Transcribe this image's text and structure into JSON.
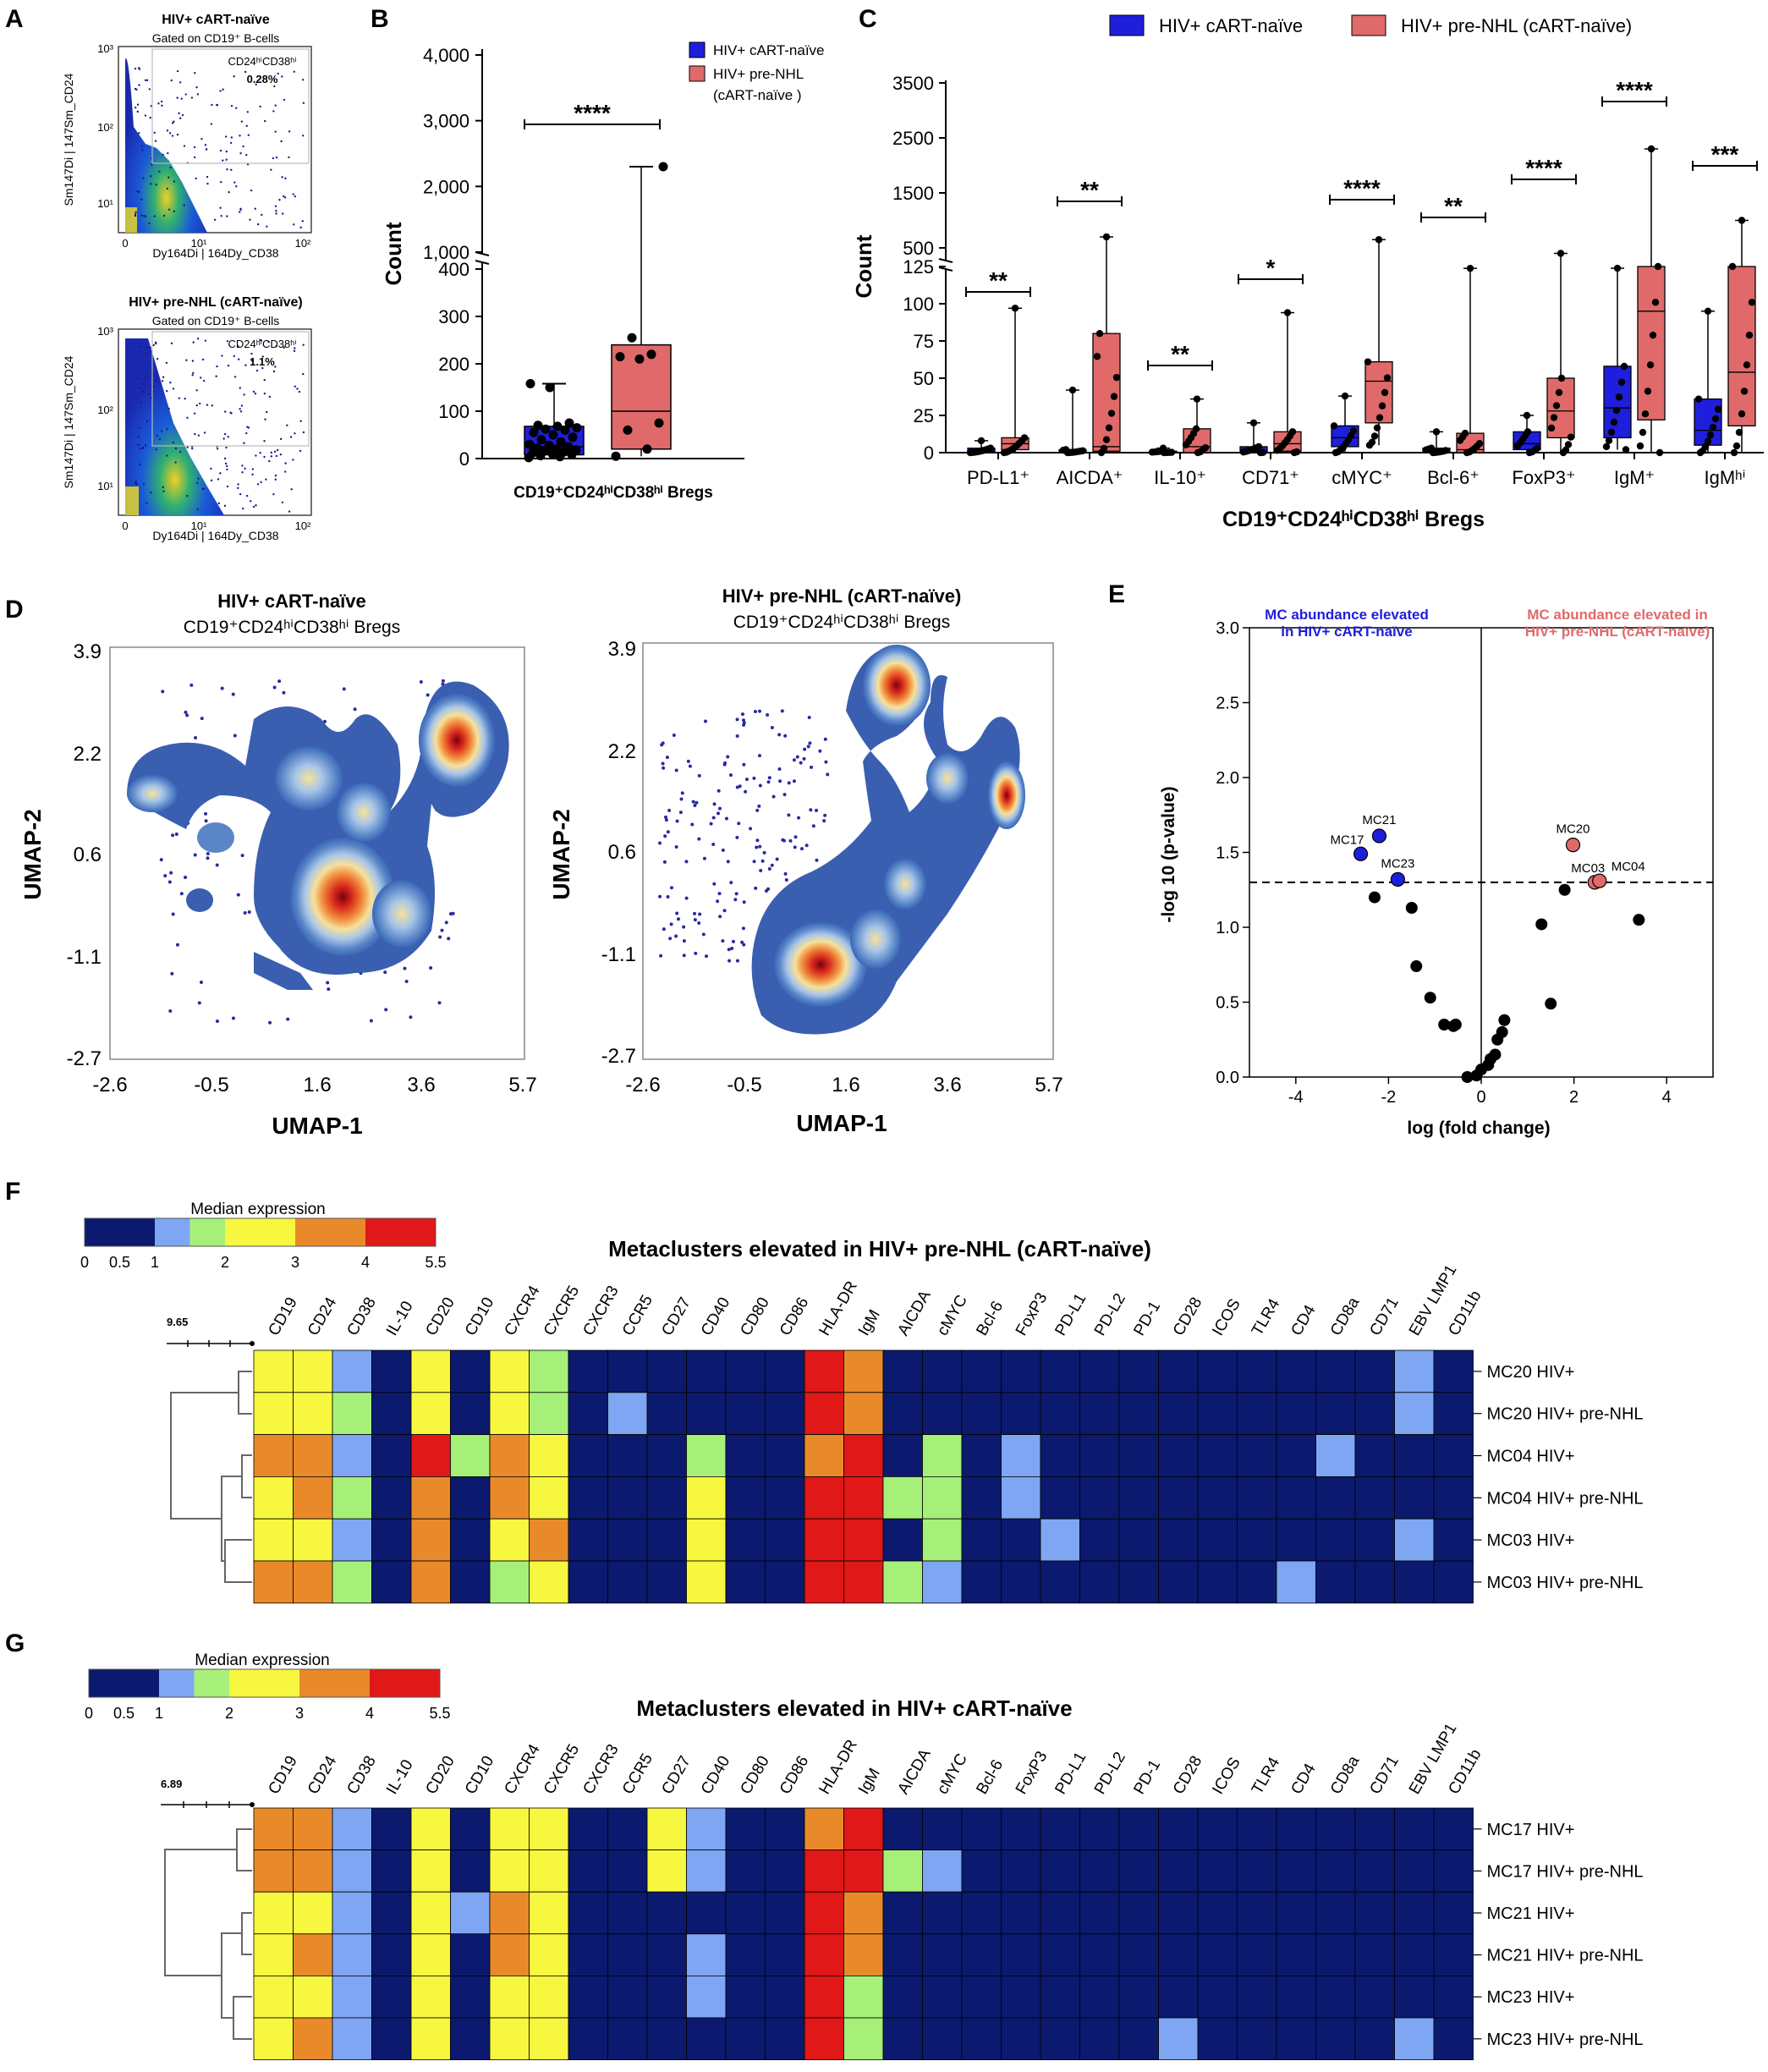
{
  "colors": {
    "blue": "#1e1edc",
    "red": "#e06a6a",
    "navy": "#0b1a6e",
    "heat": [
      "#0b1a6e",
      "#0b1a6e",
      "#7fa6f2",
      "#a6f07a",
      "#f7f75a",
      "#f5f53a",
      "#e88a2a",
      "#f08020",
      "#e01818",
      "#d81010"
    ]
  },
  "panelA": {
    "letter": "A",
    "top": {
      "title": "HIV+ cART-naïve",
      "gate": "Gated on CD19⁺ B-cells",
      "region_label": "CD24ʰⁱCD38ʰⁱ",
      "percent": "0.28%",
      "ylabel": "Sm147Di | 147Sm_CD24",
      "xlabel": "Dy164Di | 164Dy_CD38",
      "yticks": [
        "10³",
        "10²",
        "10¹"
      ],
      "xticks": [
        "0",
        "10¹",
        "10²"
      ]
    },
    "bottom": {
      "title": "HIV+ pre-NHL (cART-naïve)",
      "gate": "Gated on CD19⁺ B-cells",
      "region_label": "CD24ʰⁱCD38ʰⁱ",
      "percent": "1.1%",
      "ylabel": "Sm147Di | 147Sm_CD24",
      "xlabel": "Dy164Di | 164Dy_CD38",
      "yticks": [
        "10³",
        "10²",
        "10¹"
      ],
      "xticks": [
        "0",
        "10¹",
        "10²"
      ]
    }
  },
  "chart_data": [
    {
      "id": "B",
      "type": "box",
      "letter": "B",
      "ylabel": "Count",
      "xlabel": "CD19⁺CD24ʰⁱCD38ʰⁱ Bregs",
      "yticks": [
        "0",
        "100",
        "200",
        "300",
        "400",
        "1,000",
        "2,000",
        "3,000",
        "4,000"
      ],
      "legend": [
        "HIV+ cART-naïve",
        "HIV+ pre-NHL",
        "(cART-naïve )"
      ],
      "significance": "****",
      "series": [
        {
          "name": "HIV+ cART-naïve",
          "min": 2,
          "q1": 8,
          "median": 25,
          "q3": 68,
          "max": 158,
          "points": [
            2,
            4,
            6,
            8,
            10,
            12,
            14,
            16,
            18,
            20,
            22,
            25,
            28,
            30,
            35,
            40,
            45,
            50,
            55,
            60,
            62,
            65,
            68,
            70,
            75,
            150,
            158
          ]
        },
        {
          "name": "HIV+ pre-NHL (cART-naïve)",
          "min": 5,
          "q1": 20,
          "median": 100,
          "q3": 240,
          "max": 2300,
          "points": [
            5,
            20,
            60,
            75,
            210,
            215,
            220,
            255,
            2300
          ]
        }
      ]
    },
    {
      "id": "C",
      "type": "box",
      "letter": "C",
      "ylabel": "Count",
      "xlabel": "CD19⁺CD24ʰⁱCD38ʰⁱ Bregs",
      "yticks_low": [
        "0",
        "25",
        "50",
        "75",
        "100",
        "125"
      ],
      "yticks_high": [
        "500",
        "1500",
        "2500",
        "3500"
      ],
      "legend": [
        "HIV+ cART-naïve",
        "HIV+ pre-NHL (cART-naïve)"
      ],
      "categories": [
        "PD-L1⁺",
        "AICDA⁺",
        "IL-10⁺",
        "CD71⁺",
        "cMYC⁺",
        "Bcl-6⁺",
        "FoxP3⁺",
        "IgM⁺",
        "IgMʰⁱ"
      ],
      "significance": [
        "**",
        "**",
        "**",
        "*",
        "****",
        "**",
        "****",
        "****",
        "***"
      ],
      "series": [
        {
          "name": "HIV+ cART-naïve",
          "box": [
            {
              "min": 0,
              "q1": 0,
              "median": 1,
              "q3": 3,
              "max": 8
            },
            {
              "min": 0,
              "q1": 0,
              "median": 1,
              "q3": 2,
              "max": 42
            },
            {
              "min": 0,
              "q1": 0,
              "median": 0,
              "q3": 1,
              "max": 3
            },
            {
              "min": 0,
              "q1": 0,
              "median": 1,
              "q3": 4,
              "max": 20
            },
            {
              "min": 0,
              "q1": 4,
              "median": 10,
              "q3": 18,
              "max": 38
            },
            {
              "min": 0,
              "q1": 0,
              "median": 1,
              "q3": 3,
              "max": 14
            },
            {
              "min": 0,
              "q1": 2,
              "median": 6,
              "q3": 14,
              "max": 25
            },
            {
              "min": 2,
              "q1": 10,
              "median": 30,
              "q3": 58,
              "max": 130
            },
            {
              "min": 0,
              "q1": 5,
              "median": 15,
              "q3": 36,
              "max": 95
            }
          ]
        },
        {
          "name": "HIV+ pre-NHL (cART-naïve)",
          "box": [
            {
              "min": 0,
              "q1": 2,
              "median": 6,
              "q3": 10,
              "max": 97
            },
            {
              "min": 0,
              "q1": 1,
              "median": 4,
              "q3": 80,
              "max": 700
            },
            {
              "min": 0,
              "q1": 0,
              "median": 4,
              "q3": 16,
              "max": 36
            },
            {
              "min": 0,
              "q1": 1,
              "median": 6,
              "q3": 14,
              "max": 94
            },
            {
              "min": 5,
              "q1": 20,
              "median": 48,
              "q3": 61,
              "max": 650
            },
            {
              "min": 0,
              "q1": 0,
              "median": 2,
              "q3": 13,
              "max": 128
            },
            {
              "min": 0,
              "q1": 10,
              "median": 28,
              "q3": 50,
              "max": 400
            },
            {
              "min": 0,
              "q1": 22,
              "median": 95,
              "q3": 125,
              "max": 2300
            },
            {
              "min": 0,
              "q1": 18,
              "median": 54,
              "q3": 125,
              "max": 1000
            }
          ]
        }
      ]
    },
    {
      "id": "E",
      "type": "scatter",
      "letter": "E",
      "xlabel": "log (fold change)",
      "ylabel": "-log 10 (p-value)",
      "xlim": [
        -5,
        5
      ],
      "ylim": [
        0,
        3
      ],
      "xticks": [
        -4,
        -2,
        0,
        2,
        4
      ],
      "yticks": [
        0.0,
        0.5,
        1.0,
        1.5,
        2.0,
        2.5,
        3.0
      ],
      "threshold": 1.3,
      "annotation_left": [
        "MC abundance elevated",
        "in HIV+ cART-naïve"
      ],
      "annotation_right": [
        "MC abundance elevated in",
        "HIV+ pre-NHL (cART-naïve)"
      ],
      "labeled_points": [
        {
          "label": "MC17",
          "x": -2.6,
          "y": 1.49,
          "group": "blue"
        },
        {
          "label": "MC21",
          "x": -2.2,
          "y": 1.61,
          "group": "blue"
        },
        {
          "label": "MC23",
          "x": -1.8,
          "y": 1.32,
          "group": "blue"
        },
        {
          "label": "MC20",
          "x": 1.98,
          "y": 1.55,
          "group": "red"
        },
        {
          "label": "MC03",
          "x": 2.45,
          "y": 1.3,
          "group": "red"
        },
        {
          "label": "MC04",
          "x": 2.55,
          "y": 1.31,
          "group": "red"
        }
      ],
      "other_points": [
        [
          -2.3,
          1.2
        ],
        [
          -1.5,
          1.13
        ],
        [
          -1.4,
          0.74
        ],
        [
          -1.1,
          0.53
        ],
        [
          -0.8,
          0.35
        ],
        [
          -0.6,
          0.34
        ],
        [
          -0.55,
          0.35
        ],
        [
          -0.3,
          0.0
        ],
        [
          -0.1,
          0.01
        ],
        [
          0.0,
          0.05
        ],
        [
          0.15,
          0.08
        ],
        [
          0.2,
          0.12
        ],
        [
          0.3,
          0.15
        ],
        [
          0.35,
          0.25
        ],
        [
          0.45,
          0.3
        ],
        [
          0.5,
          0.38
        ],
        [
          1.3,
          1.02
        ],
        [
          1.5,
          0.49
        ],
        [
          1.8,
          1.25
        ],
        [
          3.4,
          1.05
        ]
      ]
    },
    {
      "id": "F",
      "type": "heatmap",
      "letter": "F",
      "title": "Metaclusters elevated in HIV+ pre-NHL (cART-naïve)",
      "scale_title": "Median expression",
      "scale_ticks": [
        "0",
        "0.5",
        "1",
        "2",
        "3",
        "4",
        "5.5"
      ],
      "dendro_label": "9.65",
      "columns": [
        "CD19",
        "CD24",
        "CD38",
        "IL-10",
        "CD20",
        "CD10",
        "CXCR4",
        "CXCR5",
        "CXCR3",
        "CCR5",
        "CD27",
        "CD40",
        "CD80",
        "CD86",
        "HLA-DR",
        "IgM",
        "AICDA",
        "cMYC",
        "Bcl-6",
        "FoxP3",
        "PD-L1",
        "PD-L2",
        "PD-1",
        "CD28",
        "ICOS",
        "TLR4",
        "CD4",
        "CD8a",
        "CD71",
        "EBV LMP1",
        "CD11b"
      ],
      "rows": [
        "MC20 HIV+",
        "MC20 HIV+ pre-NHL",
        "MC04 HIV+",
        "MC04 HIV+ pre-NHL",
        "MC03 HIV+",
        "MC03 HIV+ pre-NHL"
      ],
      "values": [
        [
          2.5,
          2.5,
          1,
          0,
          2.5,
          0,
          2.5,
          1.5,
          0,
          0,
          0,
          0,
          0,
          0,
          4.5,
          3.5,
          0,
          0,
          0,
          0,
          0,
          0,
          0,
          0,
          0,
          0,
          0,
          0,
          0,
          1,
          0
        ],
        [
          2.5,
          2.5,
          1.5,
          0,
          2.5,
          0,
          2.5,
          1.5,
          0,
          1,
          0,
          0,
          0,
          0,
          4.5,
          3.5,
          0,
          0,
          0,
          0,
          0,
          0,
          0,
          0,
          0,
          0,
          0,
          0,
          0,
          1,
          0
        ],
        [
          3.5,
          3.5,
          1,
          0,
          4.5,
          1.5,
          3.5,
          2.5,
          0,
          0,
          0,
          1.5,
          0,
          0,
          3.5,
          4.5,
          0,
          1.5,
          0,
          1,
          0,
          0,
          0,
          0,
          0,
          0,
          0,
          1,
          0,
          0,
          0
        ],
        [
          2.5,
          3.5,
          1.5,
          0,
          3.5,
          0,
          3.5,
          2.5,
          0,
          0,
          0,
          2.5,
          0,
          0,
          4.5,
          4.5,
          1.5,
          1.5,
          0,
          1,
          0,
          0,
          0,
          0,
          0,
          0,
          0,
          0,
          0,
          0,
          0
        ],
        [
          2.5,
          2.5,
          1,
          0,
          3.5,
          0,
          2.5,
          3.5,
          0,
          0,
          0,
          2.5,
          0,
          0,
          4.5,
          4.5,
          0,
          1.5,
          0,
          0,
          1,
          0,
          0,
          0,
          0,
          0,
          0,
          0,
          0,
          1,
          0
        ],
        [
          3.5,
          3.5,
          1.5,
          0,
          3.5,
          0,
          1.5,
          2.5,
          0,
          0,
          0,
          2.5,
          0,
          0,
          4.5,
          4.5,
          1.5,
          1,
          0,
          0,
          0,
          0,
          0,
          0,
          0,
          0,
          1,
          0,
          0,
          0,
          0
        ]
      ]
    },
    {
      "id": "G",
      "type": "heatmap",
      "letter": "G",
      "title": "Metaclusters elevated in HIV+ cART-naïve",
      "scale_title": "Median expression",
      "scale_ticks": [
        "0",
        "0.5",
        "1",
        "2",
        "3",
        "4",
        "5.5"
      ],
      "dendro_label": "6.89",
      "columns": [
        "CD19",
        "CD24",
        "CD38",
        "IL-10",
        "CD20",
        "CD10",
        "CXCR4",
        "CXCR5",
        "CXCR3",
        "CCR5",
        "CD27",
        "CD40",
        "CD80",
        "CD86",
        "HLA-DR",
        "IgM",
        "AICDA",
        "cMYC",
        "Bcl-6",
        "FoxP3",
        "PD-L1",
        "PD-L2",
        "PD-1",
        "CD28",
        "ICOS",
        "TLR4",
        "CD4",
        "CD8a",
        "CD71",
        "EBV LMP1",
        "CD11b"
      ],
      "rows": [
        "MC17 HIV+",
        "MC17 HIV+ pre-NHL",
        "MC21 HIV+",
        "MC21 HIV+ pre-NHL",
        "MC23 HIV+",
        "MC23 HIV+ pre-NHL"
      ],
      "values": [
        [
          3.5,
          3.5,
          1,
          0,
          2.5,
          0,
          2.5,
          2.5,
          0,
          0,
          2.5,
          1,
          0,
          0,
          3.5,
          4.5,
          0,
          0,
          0,
          0,
          0,
          0,
          0,
          0,
          0,
          0,
          0,
          0,
          0,
          0,
          0
        ],
        [
          3.5,
          3.5,
          1,
          0,
          2.5,
          0,
          2.5,
          2.5,
          0,
          0,
          2.5,
          1,
          0,
          0,
          4.5,
          4.5,
          1.5,
          1,
          0,
          0,
          0,
          0,
          0,
          0,
          0,
          0,
          0,
          0,
          0,
          0,
          0
        ],
        [
          2.5,
          2.5,
          1,
          0,
          2.5,
          1,
          3.5,
          2.5,
          0,
          0,
          0,
          0,
          0,
          0,
          4.5,
          3.5,
          0,
          0,
          0,
          0,
          0,
          0,
          0,
          0,
          0,
          0,
          0,
          0,
          0,
          0,
          0
        ],
        [
          2.5,
          3.5,
          1,
          0,
          2.5,
          0,
          3.5,
          2.5,
          0,
          0,
          0,
          1,
          0,
          0,
          4.5,
          3.5,
          0,
          0,
          0,
          0,
          0,
          0,
          0,
          0,
          0,
          0,
          0,
          0,
          0,
          0,
          0
        ],
        [
          2.5,
          2.5,
          1,
          0,
          2.5,
          0,
          2.5,
          2.5,
          0,
          0,
          0,
          1,
          0,
          0,
          4.5,
          1.5,
          0,
          0,
          0,
          0,
          0,
          0,
          0,
          0,
          0,
          0,
          0,
          0,
          0,
          0,
          0
        ],
        [
          2.5,
          3.5,
          1,
          0,
          2.5,
          0,
          2.5,
          2.5,
          0,
          0,
          0,
          0,
          0,
          0,
          4.5,
          1.5,
          0,
          0,
          0,
          0,
          0,
          0,
          0,
          1,
          0,
          0,
          0,
          0,
          0,
          1,
          0
        ]
      ]
    }
  ],
  "panelD": {
    "letter": "D",
    "left": {
      "title": "HIV+ cART-naïve",
      "subtitle": "CD19⁺CD24ʰⁱCD38ʰⁱ Bregs"
    },
    "right": {
      "title": "HIV+ pre-NHL (cART-naïve)",
      "subtitle": "CD19⁺CD24ʰⁱCD38ʰⁱ Bregs"
    },
    "xlabel": "UMAP-1",
    "ylabel": "UMAP-2",
    "xticks": [
      "-2.6",
      "-0.5",
      "1.6",
      "3.6",
      "5.7"
    ],
    "yticks": [
      "3.9",
      "2.2",
      "0.6",
      "-1.1",
      "-2.7"
    ]
  }
}
